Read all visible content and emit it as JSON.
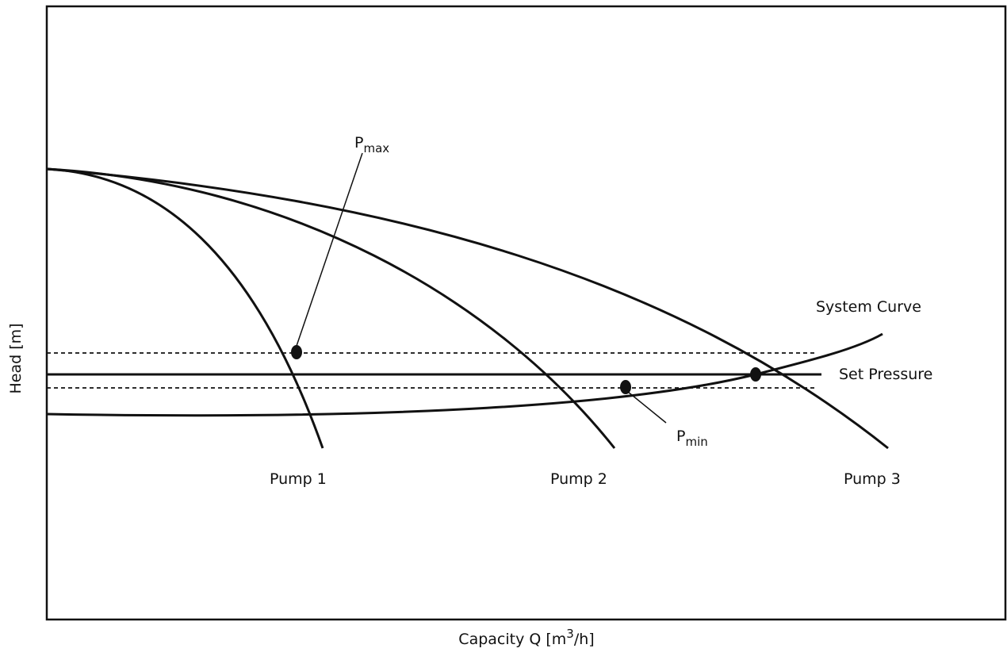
{
  "axes": {
    "x_label_main": "Capacity Q [m",
    "x_label_sup": "3",
    "x_label_end": "/h]",
    "y_label": "Head [m]"
  },
  "curves": {
    "pump1": "Pump 1",
    "pump2": "Pump 2",
    "pump3": "Pump 3",
    "system": "System Curve",
    "set_pressure": "Set Pressure"
  },
  "points": {
    "pmax_base": "P",
    "pmax_sub": "max",
    "pmin_base": "P",
    "pmin_sub": "min"
  },
  "colors": {
    "stroke": "#111111",
    "background": "#ffffff"
  }
}
